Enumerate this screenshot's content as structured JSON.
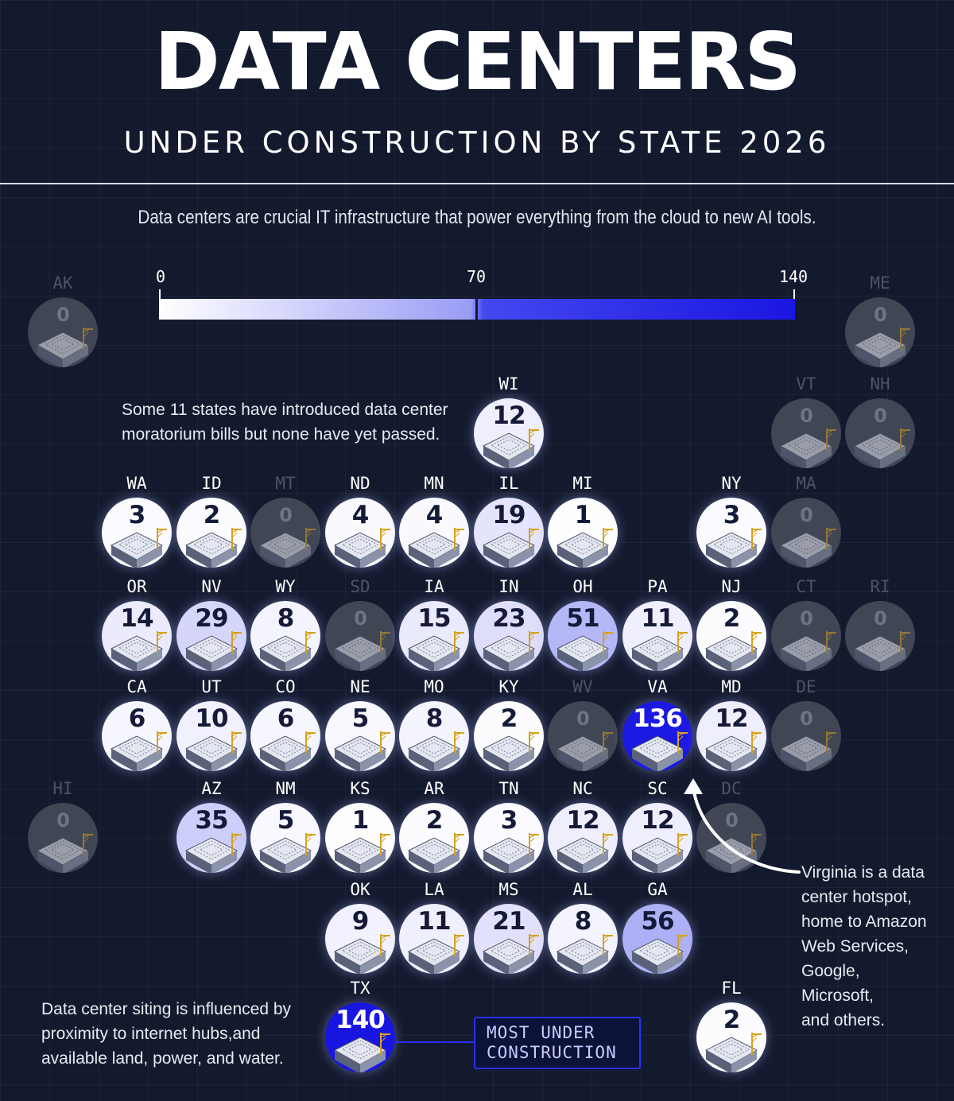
{
  "title": "DATA CENTERS",
  "subtitle": "UNDER CONSTRUCTION BY STATE 2026",
  "intro": "Data centers are crucial IT infrastructure that power everything from the cloud to new AI tools.",
  "legend": {
    "min_label": "0",
    "mid_label": "70",
    "max_label": "140",
    "colors": [
      "#ffffff",
      "#9a9cf4",
      "#4448ef",
      "#1a16e2"
    ]
  },
  "states": {
    "AK": {
      "code": "AK",
      "value": "0"
    },
    "ME": {
      "code": "ME",
      "value": "0"
    },
    "WI": {
      "code": "WI",
      "value": "12"
    },
    "VT": {
      "code": "VT",
      "value": "0"
    },
    "NH": {
      "code": "NH",
      "value": "0"
    },
    "WA": {
      "code": "WA",
      "value": "3"
    },
    "ID": {
      "code": "ID",
      "value": "2"
    },
    "MT": {
      "code": "MT",
      "value": "0"
    },
    "ND": {
      "code": "ND",
      "value": "4"
    },
    "MN": {
      "code": "MN",
      "value": "4"
    },
    "IL": {
      "code": "IL",
      "value": "19"
    },
    "MI": {
      "code": "MI",
      "value": "1"
    },
    "NY": {
      "code": "NY",
      "value": "3"
    },
    "MA": {
      "code": "MA",
      "value": "0"
    },
    "OR": {
      "code": "OR",
      "value": "14"
    },
    "NV": {
      "code": "NV",
      "value": "29"
    },
    "WY": {
      "code": "WY",
      "value": "8"
    },
    "SD": {
      "code": "SD",
      "value": "0"
    },
    "IA": {
      "code": "IA",
      "value": "15"
    },
    "IN": {
      "code": "IN",
      "value": "23"
    },
    "OH": {
      "code": "OH",
      "value": "51"
    },
    "PA": {
      "code": "PA",
      "value": "11"
    },
    "NJ": {
      "code": "NJ",
      "value": "2"
    },
    "CT": {
      "code": "CT",
      "value": "0"
    },
    "RI": {
      "code": "RI",
      "value": "0"
    },
    "CA": {
      "code": "CA",
      "value": "6"
    },
    "UT": {
      "code": "UT",
      "value": "10"
    },
    "CO": {
      "code": "CO",
      "value": "6"
    },
    "NE": {
      "code": "NE",
      "value": "5"
    },
    "MO": {
      "code": "MO",
      "value": "8"
    },
    "KY": {
      "code": "KY",
      "value": "2"
    },
    "WV": {
      "code": "WV",
      "value": "0"
    },
    "VA": {
      "code": "VA",
      "value": "136"
    },
    "MD": {
      "code": "MD",
      "value": "12"
    },
    "DE": {
      "code": "DE",
      "value": "0"
    },
    "HI": {
      "code": "HI",
      "value": "0"
    },
    "AZ": {
      "code": "AZ",
      "value": "35"
    },
    "NM": {
      "code": "NM",
      "value": "5"
    },
    "KS": {
      "code": "KS",
      "value": "1"
    },
    "AR": {
      "code": "AR",
      "value": "2"
    },
    "TN": {
      "code": "TN",
      "value": "3"
    },
    "NC": {
      "code": "NC",
      "value": "12"
    },
    "SC": {
      "code": "SC",
      "value": "12"
    },
    "DC": {
      "code": "DC",
      "value": "0"
    },
    "OK": {
      "code": "OK",
      "value": "9"
    },
    "LA": {
      "code": "LA",
      "value": "11"
    },
    "MS": {
      "code": "MS",
      "value": "21"
    },
    "AL": {
      "code": "AL",
      "value": "8"
    },
    "GA": {
      "code": "GA",
      "value": "56"
    },
    "TX": {
      "code": "TX",
      "value": "140"
    },
    "FL": {
      "code": "FL",
      "value": "2"
    }
  },
  "notes": {
    "moratorium": [
      "Some 11 states have introduced data center",
      "moratorium bills but none have yet passed."
    ],
    "virginia": [
      "Virginia is a data",
      "center hotspot,",
      "home to Amazon",
      "Web Services,",
      "Google, Microsoft,",
      "and others."
    ],
    "siting": [
      "Data center siting is influenced by",
      "proximity to internet hubs,and",
      "available land, power, and water."
    ]
  },
  "callout": [
    "MOST UNDER",
    "CONSTRUCTION"
  ]
}
